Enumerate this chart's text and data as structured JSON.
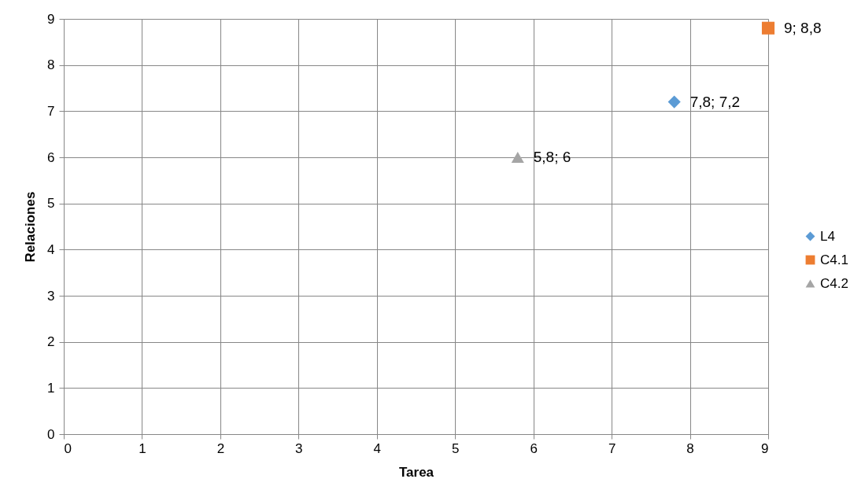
{
  "chart_data": {
    "type": "scatter",
    "xlabel": "Tarea",
    "ylabel": "Relaciones",
    "xlim": [
      0,
      9
    ],
    "ylim": [
      0,
      9
    ],
    "xticks": [
      0,
      1,
      2,
      3,
      4,
      5,
      6,
      7,
      8,
      9
    ],
    "yticks": [
      0,
      1,
      2,
      3,
      4,
      5,
      6,
      7,
      8,
      9
    ],
    "grid": true,
    "legend": "right",
    "series": [
      {
        "name": "L4",
        "color": "#5b9bd5",
        "marker": "diamond",
        "x": [
          7.8
        ],
        "values": [
          7.2
        ],
        "value_labels": [
          "7,8; 7,2"
        ]
      },
      {
        "name": "C4.1",
        "color": "#ed7d31",
        "marker": "square",
        "x": [
          9
        ],
        "values": [
          8.8
        ],
        "value_labels": [
          "9; 8,8"
        ]
      },
      {
        "name": "C4.2",
        "color": "#a5a5a5",
        "marker": "triangle",
        "x": [
          5.8
        ],
        "values": [
          6
        ],
        "value_labels": [
          "5,8; 6"
        ]
      }
    ]
  }
}
